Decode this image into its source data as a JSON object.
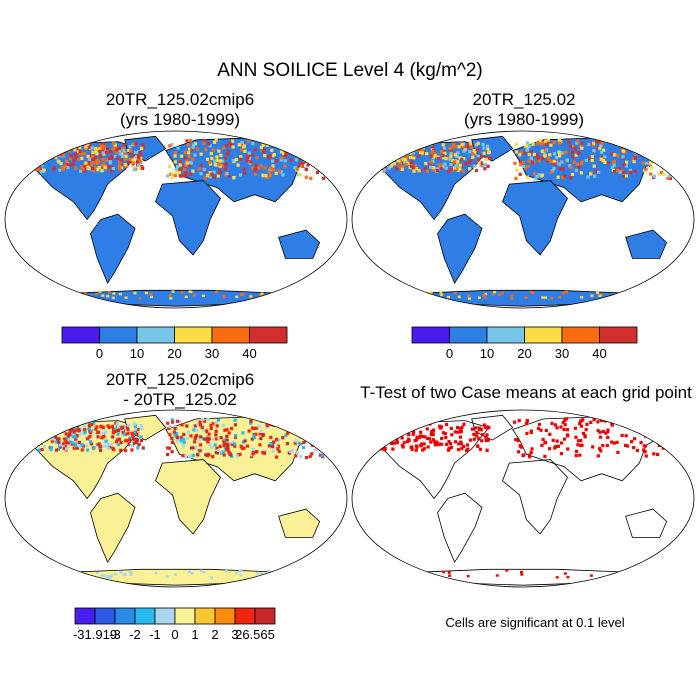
{
  "title": "ANN SOILICE Level 4 (kg/m^2)",
  "panels": [
    {
      "id": "p1",
      "title_line1": "20TR_125.02cmip6",
      "title_line2": "(yrs 1980-1999)"
    },
    {
      "id": "p2",
      "title_line1": "20TR_125.02",
      "title_line2": "(yrs 1980-1999)"
    },
    {
      "id": "p3",
      "title_line1": "20TR_125.02cmip6",
      "title_line2": "- 20TR_125.02"
    },
    {
      "id": "p4",
      "title_line1": "T-Test of two Case means at each grid point",
      "title_line2": ""
    }
  ],
  "significance_note": "Cells are significant at 0.1 level",
  "chart_data": [
    {
      "type": "heatmap",
      "panel": "p1",
      "projection": "Robinson",
      "colorbar": {
        "tick_labels": [
          "0",
          "10",
          "20",
          "30",
          "40"
        ],
        "colors": [
          "#4b1cf0",
          "#2e7ee6",
          "#78c5ea",
          "#fbdc45",
          "#fb6b10",
          "#d42f2f"
        ]
      }
    },
    {
      "type": "heatmap",
      "panel": "p2",
      "projection": "Robinson",
      "colorbar": {
        "tick_labels": [
          "0",
          "10",
          "20",
          "30",
          "40"
        ],
        "colors": [
          "#4b1cf0",
          "#2e7ee6",
          "#78c5ea",
          "#fbdc45",
          "#fb6b10",
          "#d42f2f"
        ]
      }
    },
    {
      "type": "heatmap",
      "panel": "p3",
      "projection": "Robinson",
      "colorbar": {
        "tick_labels": [
          "-31.919",
          "-3",
          "-2",
          "-1",
          "0",
          "1",
          "2",
          "3",
          "26.565"
        ],
        "colors": [
          "#4b1cf0",
          "#2e58e6",
          "#2c8be8",
          "#29b9f0",
          "#a8d6ee",
          "#faf095",
          "#fcc735",
          "#fb8a10",
          "#f0260f",
          "#c92828"
        ]
      }
    },
    {
      "type": "heatmap",
      "panel": "p4",
      "projection": "Robinson",
      "significant_color": "#ee0000"
    }
  ]
}
